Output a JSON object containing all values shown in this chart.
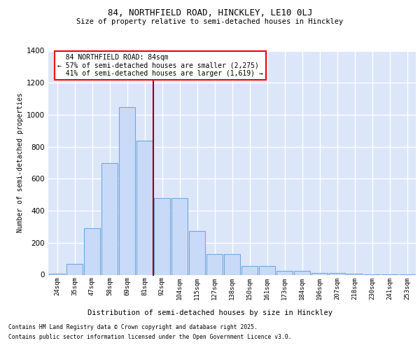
{
  "title_line1": "84, NORTHFIELD ROAD, HINCKLEY, LE10 0LJ",
  "title_line2": "Size of property relative to semi-detached houses in Hinckley",
  "xlabel": "Distribution of semi-detached houses by size in Hinckley",
  "ylabel": "Number of semi-detached properties",
  "categories": [
    "24sqm",
    "35sqm",
    "47sqm",
    "58sqm",
    "69sqm",
    "81sqm",
    "92sqm",
    "104sqm",
    "115sqm",
    "127sqm",
    "138sqm",
    "150sqm",
    "161sqm",
    "173sqm",
    "184sqm",
    "196sqm",
    "207sqm",
    "218sqm",
    "230sqm",
    "241sqm",
    "253sqm"
  ],
  "values": [
    5,
    70,
    290,
    700,
    1050,
    840,
    480,
    480,
    275,
    130,
    130,
    55,
    55,
    25,
    25,
    10,
    10,
    5,
    2,
    1,
    1
  ],
  "bar_color": "#c9daf8",
  "bar_edge_color": "#6fa8dc",
  "vline_color": "#990000",
  "pct_smaller": "57%",
  "pct_smaller_count": "2,275",
  "pct_larger": "41%",
  "pct_larger_count": "1,619",
  "property_label": "84 NORTHFIELD ROAD: 84sqm",
  "ylim_max": 1400,
  "background_color": "#dce6f9",
  "grid_color": "#ffffff",
  "footnote_line1": "Contains HM Land Registry data © Crown copyright and database right 2025.",
  "footnote_line2": "Contains public sector information licensed under the Open Government Licence v3.0."
}
